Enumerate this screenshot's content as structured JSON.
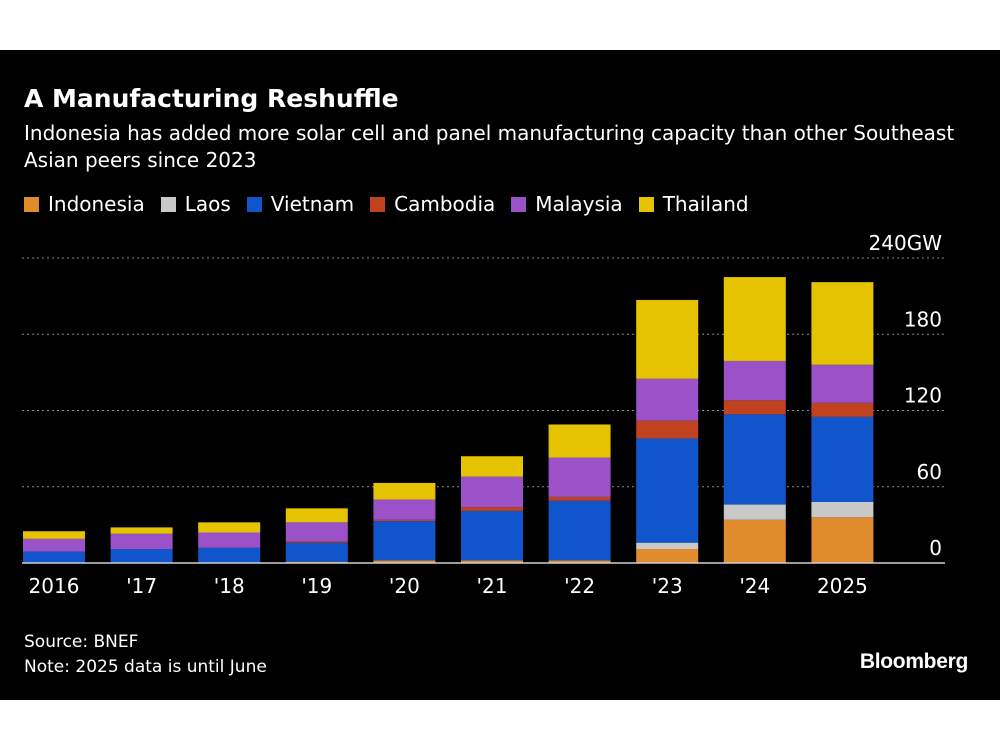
{
  "title": "A Manufacturing Reshuffle",
  "subtitle": "Indonesia has added more solar cell and panel manufacturing capacity than other Southeast Asian peers since 2023",
  "source": "Source: BNEF",
  "note": "Note: 2025 data is until June",
  "brand": "Bloomberg",
  "chart_data": {
    "type": "bar",
    "stacked": true,
    "categories": [
      "2016",
      "'17",
      "'18",
      "'19",
      "'20",
      "'21",
      "'22",
      "'23",
      "'24",
      "2025"
    ],
    "series": [
      {
        "name": "Indonesia",
        "color": "#e08c2c",
        "values": [
          0,
          0,
          0,
          1,
          2,
          2,
          2,
          11,
          34,
          36
        ]
      },
      {
        "name": "Laos",
        "color": "#c8c8c8",
        "values": [
          0,
          0,
          0,
          0,
          0,
          0,
          0,
          5,
          12,
          12
        ]
      },
      {
        "name": "Vietnam",
        "color": "#1155cc",
        "values": [
          9,
          11,
          12,
          15,
          31,
          39,
          47,
          82,
          71,
          67
        ]
      },
      {
        "name": "Cambodia",
        "color": "#c0421e",
        "values": [
          0,
          0,
          0,
          1,
          1,
          3,
          3,
          14,
          11,
          11
        ]
      },
      {
        "name": "Malaysia",
        "color": "#9b52c8",
        "values": [
          10,
          12,
          12,
          15,
          16,
          24,
          31,
          33,
          31,
          30
        ]
      },
      {
        "name": "Thailand",
        "color": "#e6c300",
        "values": [
          6,
          5,
          8,
          11,
          13,
          16,
          26,
          62,
          66,
          65
        ]
      }
    ],
    "y_ticks": [
      "240GW",
      "180",
      "120",
      "60",
      "0"
    ],
    "y_tick_values": [
      240,
      180,
      120,
      60,
      0
    ],
    "ylim": [
      0,
      240
    ],
    "grid": true
  }
}
